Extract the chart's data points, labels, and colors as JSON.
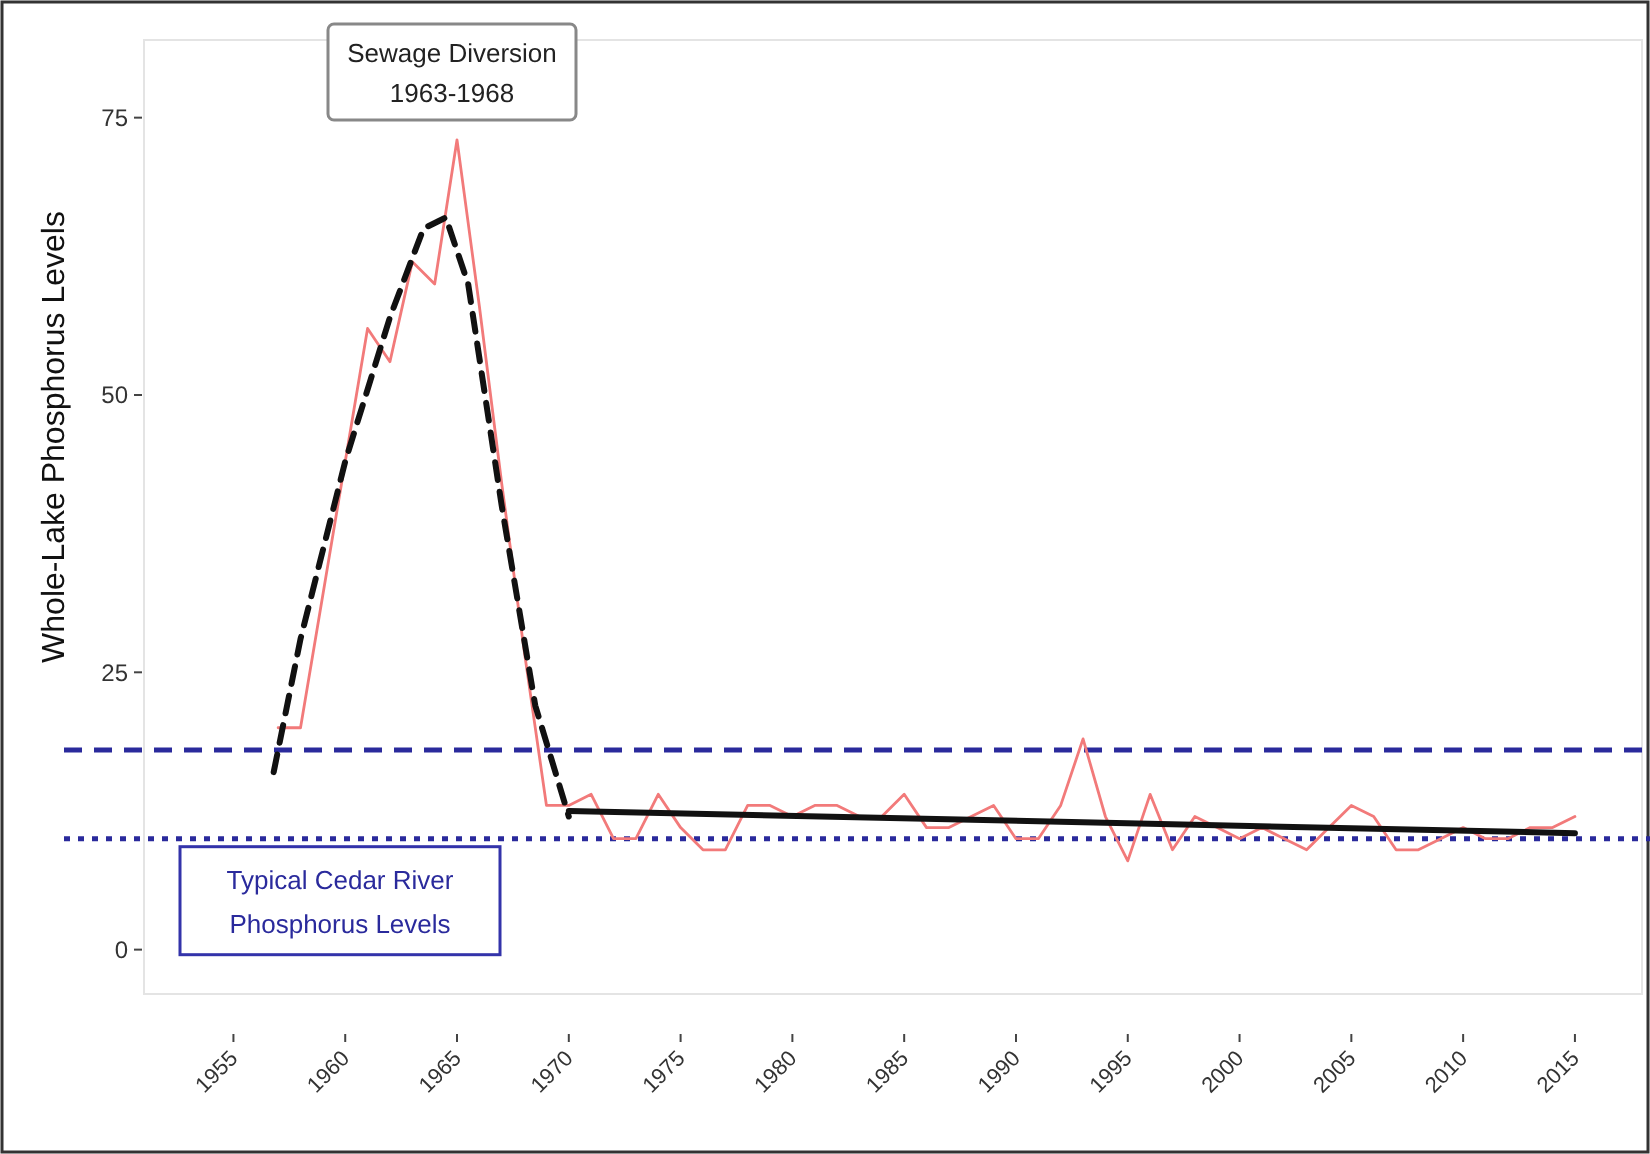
{
  "chart_data": {
    "type": "line",
    "ylabel": "Whole-Lake Phosphorus Levels",
    "xlim": [
      1951,
      2018
    ],
    "xticks": [
      1955,
      1960,
      1965,
      1970,
      1975,
      1980,
      1985,
      1990,
      1995,
      2000,
      2005,
      2010,
      2015
    ],
    "ylim": [
      -4,
      82
    ],
    "yticks": [
      0,
      25,
      50,
      75
    ],
    "grid": false,
    "marker": "none",
    "series": [
      {
        "color": "#f27a7a",
        "line_style": "solid",
        "x": [
          1957,
          1958,
          1959,
          1960,
          1961,
          1962,
          1963,
          1964,
          1965,
          1966,
          1967,
          1968,
          1969,
          1970,
          1971,
          1972,
          1973,
          1974,
          1975,
          1976,
          1977,
          1978,
          1979,
          1980,
          1981,
          1982,
          1983,
          1984,
          1985,
          1986,
          1987,
          1988,
          1989,
          1990,
          1991,
          1992,
          1993,
          1994,
          1995,
          1996,
          1997,
          1998,
          1999,
          2000,
          2001,
          2002,
          2003,
          2004,
          2005,
          2006,
          2007,
          2008,
          2009,
          2010,
          2011,
          2012,
          2013,
          2014,
          2015
        ],
        "values": [
          20,
          20,
          32,
          44,
          56,
          53,
          62,
          60,
          73,
          58,
          42,
          27,
          13,
          13,
          14,
          10,
          10,
          14,
          11,
          9,
          9,
          13,
          13,
          12,
          13,
          13,
          12,
          12,
          14,
          11,
          11,
          12,
          13,
          10,
          10,
          13,
          19,
          12,
          8,
          14,
          9,
          12,
          11,
          10,
          11,
          10,
          9,
          11,
          13,
          12,
          9,
          9,
          10,
          11,
          10,
          10,
          11,
          11,
          12
        ]
      },
      {
        "color": "#111111",
        "line_style": "dashed",
        "x": [
          1956.8,
          1958,
          1960,
          1962,
          1963.5,
          1964.5,
          1965.5,
          1967,
          1968.5,
          1970
        ],
        "values": [
          16,
          28,
          44,
          57,
          65,
          66,
          60,
          40,
          22,
          12
        ]
      },
      {
        "color": "#111111",
        "line_style": "solid",
        "x": [
          1970,
          2015
        ],
        "values": [
          12.5,
          10.5
        ]
      }
    ],
    "ref_lines": [
      {
        "axis": "y",
        "value": 18,
        "color": "#2a2a9c",
        "line_style": "dashed"
      },
      {
        "axis": "y",
        "value": 10,
        "color": "#2a2a9c",
        "line_style": "dotted"
      }
    ],
    "annotations": [
      "Sewage Diversion\n1963-1968",
      "Typical Cedar River\nPhosphorus Levels"
    ]
  }
}
